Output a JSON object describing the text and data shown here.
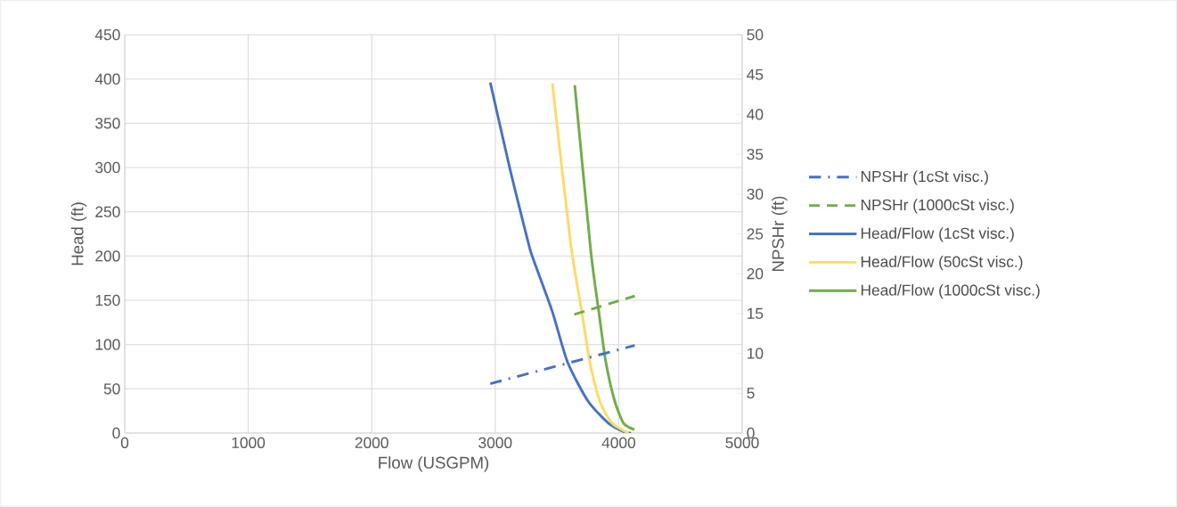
{
  "chart_data": {
    "type": "line",
    "xlabel": "Flow (USGPM)",
    "ylabel": "Head (ft)",
    "y2label": "NPSHr (ft)",
    "xlim": [
      0,
      5000
    ],
    "xticks": [
      0,
      1000,
      2000,
      3000,
      4000,
      5000
    ],
    "ylim": [
      0,
      450
    ],
    "yticks": [
      0,
      50,
      100,
      150,
      200,
      250,
      300,
      350,
      400,
      450
    ],
    "y2lim": [
      0,
      50
    ],
    "y2ticks": [
      0,
      5,
      10,
      15,
      20,
      25,
      30,
      35,
      40,
      45,
      50
    ],
    "grid": true,
    "legend": "right",
    "marker": "none",
    "series": [
      {
        "name": "NPSHr (1cSt visc.)",
        "color": "#4472c4",
        "axis": "y2",
        "line_style": "dashdot",
        "x": [
          2960,
          4130
        ],
        "values": [
          6.2,
          11
        ]
      },
      {
        "name": "NPSHr (1000cSt visc.)",
        "color": "#70ad47",
        "axis": "y2",
        "line_style": "dashed",
        "x": [
          3640,
          4130
        ],
        "values": [
          14.9,
          17.2
        ]
      },
      {
        "name": "Head/Flow (1cSt visc.)",
        "color": "#4472c4",
        "line_style": "solid",
        "x": [
          2960,
          3115,
          3203,
          3283,
          3333,
          3463,
          3586,
          3752,
          3918,
          4050,
          4100
        ],
        "values": [
          396,
          301,
          251,
          207,
          187,
          137,
          80,
          36,
          11,
          1,
          0
        ]
      },
      {
        "name": "Head/Flow (50cSt visc.)",
        "color": "#ffd966",
        "line_style": "solid",
        "x": [
          3463,
          3608,
          3701,
          3766,
          3846,
          3947,
          4080
        ],
        "values": [
          395,
          217,
          137,
          80,
          36,
          11,
          0
        ]
      },
      {
        "name": "Head/Flow (1000cSt visc.)",
        "color": "#70ad47",
        "line_style": "solid",
        "x": [
          3644,
          3773,
          3839,
          3896,
          3968,
          4040,
          4127
        ],
        "values": [
          393,
          207,
          137,
          80,
          36,
          11,
          4
        ]
      }
    ]
  }
}
